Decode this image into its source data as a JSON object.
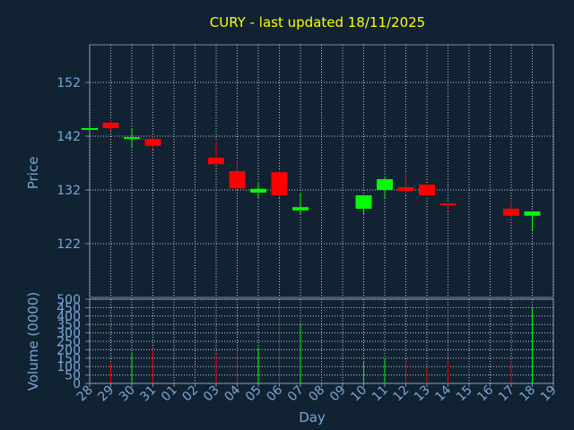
{
  "chart_data": [
    {
      "type": "candlestick",
      "title": "CURY - last updated 18/11/2025",
      "ylabel": "Price",
      "ylim": [
        112,
        159
      ],
      "yticks": [
        122,
        132,
        142,
        152
      ],
      "grid": true,
      "up_color": "#00ff00",
      "down_color": "#ff0000",
      "x": [
        "28",
        "29",
        "30",
        "31",
        "01",
        "02",
        "03",
        "04",
        "05",
        "06",
        "07",
        "08",
        "09",
        "10",
        "11",
        "12",
        "13",
        "14",
        "15",
        "16",
        "17",
        "18",
        "19"
      ],
      "candles": [
        {
          "x": "28",
          "open": 143.5,
          "high": 143.5,
          "low": 143.5,
          "close": 143.5,
          "dir": "up"
        },
        {
          "x": "29",
          "open": 144.5,
          "high": 145.0,
          "low": 143.0,
          "close": 143.5,
          "dir": "down"
        },
        {
          "x": "30",
          "open": 141.5,
          "high": 143.5,
          "low": 140.0,
          "close": 141.8,
          "dir": "up"
        },
        {
          "x": "31",
          "open": 141.5,
          "high": 142.0,
          "low": 139.5,
          "close": 140.2,
          "dir": "down"
        },
        {
          "x": "03",
          "open": 138.0,
          "high": 141.0,
          "low": 136.5,
          "close": 136.8,
          "dir": "down"
        },
        {
          "x": "04",
          "open": 135.5,
          "high": 137.5,
          "low": 132.0,
          "close": 132.3,
          "dir": "down"
        },
        {
          "x": "05",
          "open": 131.5,
          "high": 133.5,
          "low": 130.5,
          "close": 132.2,
          "dir": "up"
        },
        {
          "x": "06",
          "open": 135.3,
          "high": 135.5,
          "low": 130.5,
          "close": 131.0,
          "dir": "down"
        },
        {
          "x": "07",
          "open": 128.2,
          "high": 131.5,
          "low": 127.5,
          "close": 128.8,
          "dir": "up"
        },
        {
          "x": "10",
          "open": 128.5,
          "high": 131.0,
          "low": 127.5,
          "close": 131.0,
          "dir": "up"
        },
        {
          "x": "11",
          "open": 132.0,
          "high": 134.5,
          "low": 130.5,
          "close": 134.0,
          "dir": "up"
        },
        {
          "x": "12",
          "open": 132.5,
          "high": 135.0,
          "low": 131.0,
          "close": 131.8,
          "dir": "down"
        },
        {
          "x": "13",
          "open": 133.0,
          "high": 133.0,
          "low": 130.8,
          "close": 131.0,
          "dir": "down"
        },
        {
          "x": "14",
          "open": 129.5,
          "high": 129.5,
          "low": 128.0,
          "close": 129.2,
          "dir": "down"
        },
        {
          "x": "17",
          "open": 128.5,
          "high": 130.0,
          "low": 126.8,
          "close": 127.2,
          "dir": "down"
        },
        {
          "x": "18",
          "open": 127.2,
          "high": 128.0,
          "low": 124.5,
          "close": 128.0,
          "dir": "up"
        }
      ]
    },
    {
      "type": "bar",
      "ylabel": "Volume (0000)",
      "xlabel": "Day",
      "ylim": [
        0,
        500
      ],
      "yticks": [
        0,
        50,
        100,
        150,
        200,
        250,
        300,
        350,
        400,
        450,
        500
      ],
      "grid": true,
      "bars": [
        {
          "x": "29",
          "value": 120,
          "dir": "down"
        },
        {
          "x": "30",
          "value": 185,
          "dir": "up"
        },
        {
          "x": "31",
          "value": 200,
          "dir": "down"
        },
        {
          "x": "03",
          "value": 170,
          "dir": "down"
        },
        {
          "x": "04",
          "value": 195,
          "dir": "down"
        },
        {
          "x": "05",
          "value": 215,
          "dir": "up"
        },
        {
          "x": "06",
          "value": 470,
          "dir": "down"
        },
        {
          "x": "07",
          "value": 350,
          "dir": "up"
        },
        {
          "x": "10",
          "value": 130,
          "dir": "up"
        },
        {
          "x": "11",
          "value": 150,
          "dir": "up"
        },
        {
          "x": "12",
          "value": 140,
          "dir": "down"
        },
        {
          "x": "13",
          "value": 95,
          "dir": "down"
        },
        {
          "x": "14",
          "value": 130,
          "dir": "down"
        },
        {
          "x": "17",
          "value": 130,
          "dir": "down"
        },
        {
          "x": "18",
          "value": 445,
          "dir": "up"
        }
      ]
    }
  ]
}
